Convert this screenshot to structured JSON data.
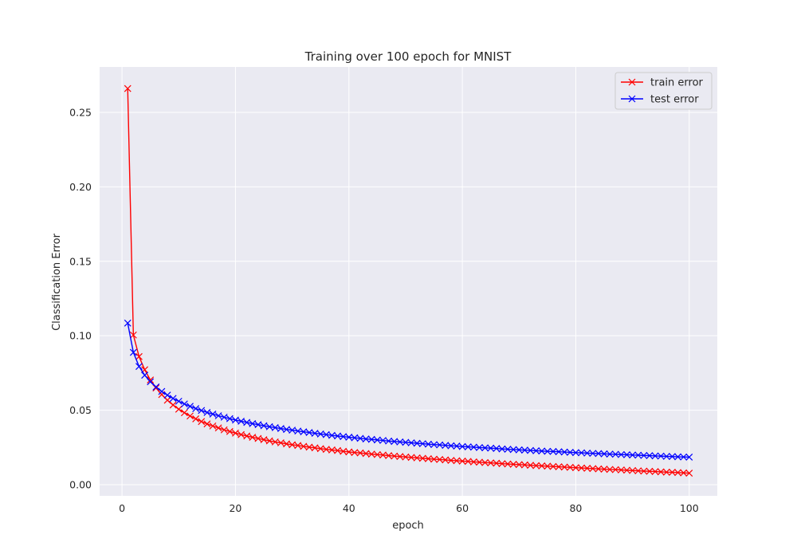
{
  "chart_data": {
    "type": "line",
    "title": "Training over 100 epoch for MNIST",
    "xlabel": "epoch",
    "ylabel": "Classification Error",
    "xlim": [
      -3.95,
      104.95
    ],
    "ylim": [
      -0.0075,
      0.2805
    ],
    "xticks": [
      0,
      20,
      40,
      60,
      80,
      100
    ],
    "yticks": [
      0.0,
      0.05,
      0.1,
      0.15,
      0.2,
      0.25
    ],
    "ytick_labels": [
      "0.00",
      "0.05",
      "0.10",
      "0.15",
      "0.20",
      "0.25"
    ],
    "grid": true,
    "legend_position": "top-right",
    "style": {
      "background": "#eaeaf2",
      "grid_color": "#ffffff",
      "marker": "x"
    },
    "series": [
      {
        "name": "train error",
        "color": "#ff0000",
        "x": [
          1,
          2,
          3,
          4,
          5,
          6,
          7,
          8,
          9,
          10,
          11,
          12,
          13,
          14,
          15,
          16,
          17,
          18,
          19,
          20,
          21,
          22,
          23,
          24,
          25,
          26,
          27,
          28,
          29,
          30,
          31,
          32,
          33,
          34,
          35,
          36,
          37,
          38,
          39,
          40,
          41,
          42,
          43,
          44,
          45,
          46,
          47,
          48,
          49,
          50,
          51,
          52,
          53,
          54,
          55,
          56,
          57,
          58,
          59,
          60,
          61,
          62,
          63,
          64,
          65,
          66,
          67,
          68,
          69,
          70,
          71,
          72,
          73,
          74,
          75,
          76,
          77,
          78,
          79,
          80,
          81,
          82,
          83,
          84,
          85,
          86,
          87,
          88,
          89,
          90,
          91,
          92,
          93,
          94,
          95,
          96,
          97,
          98,
          99,
          100
        ],
        "values": [
          0.266,
          0.1005,
          0.086,
          0.0772,
          0.0703,
          0.0649,
          0.0605,
          0.0567,
          0.0535,
          0.0507,
          0.0483,
          0.0461,
          0.0442,
          0.0424,
          0.0408,
          0.0394,
          0.0381,
          0.0368,
          0.0357,
          0.0346,
          0.0336,
          0.0327,
          0.0318,
          0.031,
          0.0302,
          0.0294,
          0.0287,
          0.0281,
          0.0274,
          0.0268,
          0.0263,
          0.0257,
          0.0252,
          0.0247,
          0.0242,
          0.0237,
          0.0233,
          0.0229,
          0.0224,
          0.022,
          0.0216,
          0.0213,
          0.0209,
          0.0205,
          0.0202,
          0.0199,
          0.0195,
          0.0192,
          0.0189,
          0.0186,
          0.0183,
          0.018,
          0.0177,
          0.0174,
          0.0171,
          0.0169,
          0.0166,
          0.0163,
          0.0161,
          0.0158,
          0.0156,
          0.0153,
          0.0151,
          0.0148,
          0.0146,
          0.0144,
          0.0141,
          0.0139,
          0.0137,
          0.0135,
          0.0133,
          0.013,
          0.0128,
          0.0126,
          0.0124,
          0.0122,
          0.012,
          0.0118,
          0.0116,
          0.0114,
          0.0112,
          0.011,
          0.0108,
          0.0106,
          0.0104,
          0.0102,
          0.0101,
          0.0099,
          0.0097,
          0.0095,
          0.0093,
          0.0091,
          0.009,
          0.0088,
          0.0086,
          0.0084,
          0.0083,
          0.0081,
          0.0079,
          0.0077
        ]
      },
      {
        "name": "test error",
        "color": "#0000ff",
        "x": [
          1,
          2,
          3,
          4,
          5,
          6,
          7,
          8,
          9,
          10,
          11,
          12,
          13,
          14,
          15,
          16,
          17,
          18,
          19,
          20,
          21,
          22,
          23,
          24,
          25,
          26,
          27,
          28,
          29,
          30,
          31,
          32,
          33,
          34,
          35,
          36,
          37,
          38,
          39,
          40,
          41,
          42,
          43,
          44,
          45,
          46,
          47,
          48,
          49,
          50,
          51,
          52,
          53,
          54,
          55,
          56,
          57,
          58,
          59,
          60,
          61,
          62,
          63,
          64,
          65,
          66,
          67,
          68,
          69,
          70,
          71,
          72,
          73,
          74,
          75,
          76,
          77,
          78,
          79,
          80,
          81,
          82,
          83,
          84,
          85,
          86,
          87,
          88,
          89,
          90,
          91,
          92,
          93,
          94,
          95,
          96,
          97,
          98,
          99,
          100
        ],
        "values": [
          0.1085,
          0.0888,
          0.0794,
          0.0735,
          0.0691,
          0.0656,
          0.0626,
          0.0601,
          0.0579,
          0.056,
          0.0542,
          0.0526,
          0.0511,
          0.0498,
          0.0485,
          0.0474,
          0.0463,
          0.0453,
          0.0443,
          0.0434,
          0.0426,
          0.0418,
          0.041,
          0.0403,
          0.0396,
          0.0389,
          0.0383,
          0.0377,
          0.0371,
          0.0366,
          0.036,
          0.0355,
          0.035,
          0.0345,
          0.034,
          0.0336,
          0.0331,
          0.0327,
          0.0323,
          0.0319,
          0.0315,
          0.0311,
          0.0307,
          0.0304,
          0.03,
          0.0297,
          0.0293,
          0.029,
          0.0287,
          0.0284,
          0.0281,
          0.0278,
          0.0275,
          0.0272,
          0.0269,
          0.0267,
          0.0264,
          0.0261,
          0.0259,
          0.0256,
          0.0254,
          0.0252,
          0.0249,
          0.0247,
          0.0245,
          0.0243,
          0.024,
          0.0238,
          0.0236,
          0.0234,
          0.0232,
          0.023,
          0.0228,
          0.0226,
          0.0224,
          0.0223,
          0.0221,
          0.0219,
          0.0217,
          0.0215,
          0.0214,
          0.0212,
          0.021,
          0.0209,
          0.0207,
          0.0205,
          0.0204,
          0.0202,
          0.0201,
          0.0199,
          0.0198,
          0.0196,
          0.0195,
          0.0193,
          0.0192,
          0.019,
          0.0189,
          0.0187,
          0.0186,
          0.0185
        ]
      }
    ]
  }
}
